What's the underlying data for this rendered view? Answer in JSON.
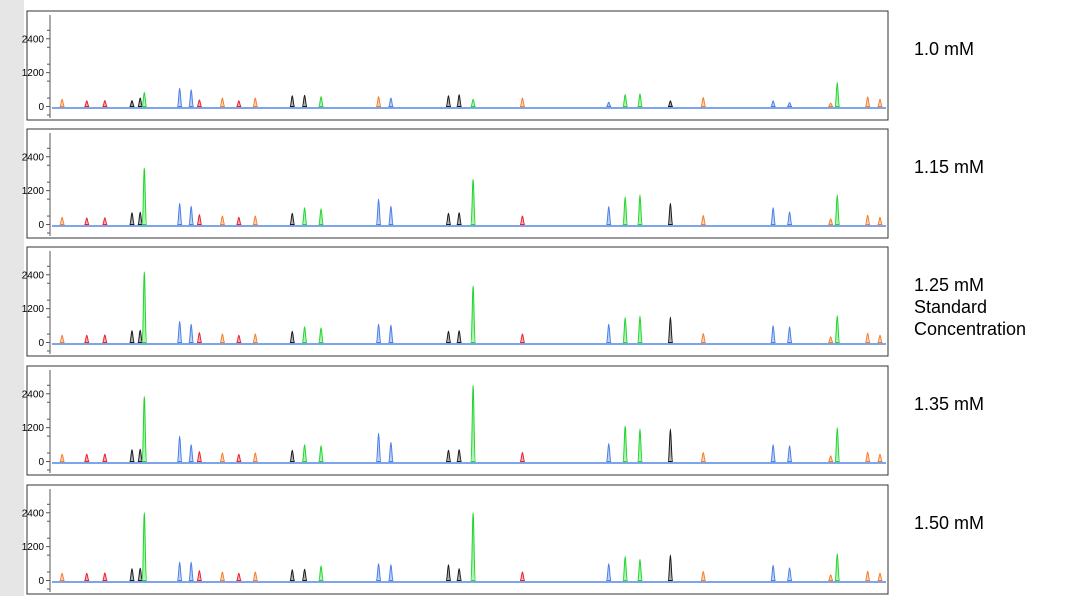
{
  "chart_data": {
    "type": "line",
    "y_ticks": [
      "2400",
      "1200",
      "0"
    ],
    "ylim": [
      -300,
      3100
    ],
    "x_range": [
      0,
      1
    ],
    "grid": false,
    "colors": {
      "blue": "#4a7fe6",
      "green": "#1fd62c",
      "black": "#1a1a1a",
      "red": "#e8202a",
      "orange": "#f57d2a",
      "baseline": "#2f6fe0"
    },
    "panels": [
      {
        "label": [
          "1.0 mM"
        ],
        "peaks": [
          {
            "x": 0.005,
            "h": 260,
            "c": "orange"
          },
          {
            "x": 0.035,
            "h": 200,
            "c": "red"
          },
          {
            "x": 0.057,
            "h": 210,
            "c": "red"
          },
          {
            "x": 0.09,
            "h": 210,
            "c": "black"
          },
          {
            "x": 0.1,
            "h": 300,
            "c": "black"
          },
          {
            "x": 0.105,
            "h": 500,
            "c": "green"
          },
          {
            "x": 0.148,
            "h": 650,
            "c": "blue"
          },
          {
            "x": 0.162,
            "h": 600,
            "c": "blue"
          },
          {
            "x": 0.172,
            "h": 230,
            "c": "red"
          },
          {
            "x": 0.2,
            "h": 300,
            "c": "orange"
          },
          {
            "x": 0.22,
            "h": 200,
            "c": "red"
          },
          {
            "x": 0.24,
            "h": 300,
            "c": "orange"
          },
          {
            "x": 0.285,
            "h": 380,
            "c": "black"
          },
          {
            "x": 0.3,
            "h": 400,
            "c": "black"
          },
          {
            "x": 0.32,
            "h": 350,
            "c": "green"
          },
          {
            "x": 0.39,
            "h": 350,
            "c": "orange"
          },
          {
            "x": 0.405,
            "h": 300,
            "c": "blue"
          },
          {
            "x": 0.475,
            "h": 380,
            "c": "black"
          },
          {
            "x": 0.488,
            "h": 420,
            "c": "black"
          },
          {
            "x": 0.505,
            "h": 260,
            "c": "green"
          },
          {
            "x": 0.565,
            "h": 300,
            "c": "orange"
          },
          {
            "x": 0.67,
            "h": 150,
            "c": "blue"
          },
          {
            "x": 0.69,
            "h": 420,
            "c": "green"
          },
          {
            "x": 0.708,
            "h": 450,
            "c": "green"
          },
          {
            "x": 0.745,
            "h": 200,
            "c": "black"
          },
          {
            "x": 0.785,
            "h": 320,
            "c": "orange"
          },
          {
            "x": 0.87,
            "h": 200,
            "c": "blue"
          },
          {
            "x": 0.89,
            "h": 140,
            "c": "blue"
          },
          {
            "x": 0.94,
            "h": 120,
            "c": "orange"
          },
          {
            "x": 0.948,
            "h": 850,
            "c": "green"
          },
          {
            "x": 0.985,
            "h": 340,
            "c": "orange"
          },
          {
            "x": 1.0,
            "h": 260,
            "c": "orange"
          }
        ]
      },
      {
        "label": [
          "1.15 mM"
        ],
        "peaks": [
          {
            "x": 0.005,
            "h": 260,
            "c": "orange"
          },
          {
            "x": 0.035,
            "h": 230,
            "c": "red"
          },
          {
            "x": 0.057,
            "h": 240,
            "c": "red"
          },
          {
            "x": 0.09,
            "h": 420,
            "c": "black"
          },
          {
            "x": 0.1,
            "h": 440,
            "c": "black"
          },
          {
            "x": 0.105,
            "h": 2000,
            "c": "green"
          },
          {
            "x": 0.148,
            "h": 750,
            "c": "blue"
          },
          {
            "x": 0.162,
            "h": 650,
            "c": "blue"
          },
          {
            "x": 0.172,
            "h": 350,
            "c": "red"
          },
          {
            "x": 0.2,
            "h": 300,
            "c": "orange"
          },
          {
            "x": 0.22,
            "h": 260,
            "c": "red"
          },
          {
            "x": 0.24,
            "h": 300,
            "c": "orange"
          },
          {
            "x": 0.285,
            "h": 400,
            "c": "black"
          },
          {
            "x": 0.3,
            "h": 600,
            "c": "green"
          },
          {
            "x": 0.32,
            "h": 560,
            "c": "green"
          },
          {
            "x": 0.39,
            "h": 900,
            "c": "blue"
          },
          {
            "x": 0.405,
            "h": 650,
            "c": "blue"
          },
          {
            "x": 0.475,
            "h": 400,
            "c": "black"
          },
          {
            "x": 0.488,
            "h": 420,
            "c": "black"
          },
          {
            "x": 0.505,
            "h": 1600,
            "c": "green"
          },
          {
            "x": 0.565,
            "h": 300,
            "c": "red"
          },
          {
            "x": 0.67,
            "h": 640,
            "c": "blue"
          },
          {
            "x": 0.69,
            "h": 980,
            "c": "green"
          },
          {
            "x": 0.708,
            "h": 1050,
            "c": "green"
          },
          {
            "x": 0.745,
            "h": 750,
            "c": "black"
          },
          {
            "x": 0.785,
            "h": 320,
            "c": "orange"
          },
          {
            "x": 0.87,
            "h": 600,
            "c": "blue"
          },
          {
            "x": 0.89,
            "h": 450,
            "c": "blue"
          },
          {
            "x": 0.94,
            "h": 200,
            "c": "orange"
          },
          {
            "x": 0.948,
            "h": 1050,
            "c": "green"
          },
          {
            "x": 0.985,
            "h": 330,
            "c": "orange"
          },
          {
            "x": 1.0,
            "h": 260,
            "c": "orange"
          }
        ]
      },
      {
        "label": [
          "1.25 mM",
          "Standard",
          "Concentration"
        ],
        "peaks": [
          {
            "x": 0.005,
            "h": 260,
            "c": "orange"
          },
          {
            "x": 0.035,
            "h": 260,
            "c": "red"
          },
          {
            "x": 0.057,
            "h": 270,
            "c": "red"
          },
          {
            "x": 0.09,
            "h": 420,
            "c": "black"
          },
          {
            "x": 0.1,
            "h": 440,
            "c": "black"
          },
          {
            "x": 0.105,
            "h": 2500,
            "c": "green"
          },
          {
            "x": 0.148,
            "h": 750,
            "c": "blue"
          },
          {
            "x": 0.162,
            "h": 650,
            "c": "blue"
          },
          {
            "x": 0.172,
            "h": 350,
            "c": "red"
          },
          {
            "x": 0.2,
            "h": 300,
            "c": "orange"
          },
          {
            "x": 0.22,
            "h": 260,
            "c": "red"
          },
          {
            "x": 0.24,
            "h": 300,
            "c": "orange"
          },
          {
            "x": 0.285,
            "h": 400,
            "c": "black"
          },
          {
            "x": 0.3,
            "h": 560,
            "c": "green"
          },
          {
            "x": 0.32,
            "h": 520,
            "c": "green"
          },
          {
            "x": 0.39,
            "h": 650,
            "c": "blue"
          },
          {
            "x": 0.405,
            "h": 620,
            "c": "blue"
          },
          {
            "x": 0.475,
            "h": 400,
            "c": "black"
          },
          {
            "x": 0.488,
            "h": 420,
            "c": "black"
          },
          {
            "x": 0.505,
            "h": 2000,
            "c": "green"
          },
          {
            "x": 0.565,
            "h": 300,
            "c": "red"
          },
          {
            "x": 0.67,
            "h": 650,
            "c": "blue"
          },
          {
            "x": 0.69,
            "h": 880,
            "c": "green"
          },
          {
            "x": 0.708,
            "h": 930,
            "c": "green"
          },
          {
            "x": 0.745,
            "h": 900,
            "c": "black"
          },
          {
            "x": 0.785,
            "h": 320,
            "c": "orange"
          },
          {
            "x": 0.87,
            "h": 600,
            "c": "blue"
          },
          {
            "x": 0.89,
            "h": 560,
            "c": "blue"
          },
          {
            "x": 0.94,
            "h": 200,
            "c": "orange"
          },
          {
            "x": 0.948,
            "h": 950,
            "c": "green"
          },
          {
            "x": 0.985,
            "h": 330,
            "c": "orange"
          },
          {
            "x": 1.0,
            "h": 260,
            "c": "orange"
          }
        ]
      },
      {
        "label": [
          "1.35 mM"
        ],
        "peaks": [
          {
            "x": 0.005,
            "h": 260,
            "c": "orange"
          },
          {
            "x": 0.035,
            "h": 260,
            "c": "red"
          },
          {
            "x": 0.057,
            "h": 270,
            "c": "red"
          },
          {
            "x": 0.09,
            "h": 420,
            "c": "black"
          },
          {
            "x": 0.1,
            "h": 440,
            "c": "black"
          },
          {
            "x": 0.105,
            "h": 2300,
            "c": "green"
          },
          {
            "x": 0.148,
            "h": 900,
            "c": "blue"
          },
          {
            "x": 0.162,
            "h": 600,
            "c": "blue"
          },
          {
            "x": 0.172,
            "h": 350,
            "c": "red"
          },
          {
            "x": 0.2,
            "h": 300,
            "c": "orange"
          },
          {
            "x": 0.22,
            "h": 260,
            "c": "red"
          },
          {
            "x": 0.24,
            "h": 300,
            "c": "orange"
          },
          {
            "x": 0.285,
            "h": 400,
            "c": "black"
          },
          {
            "x": 0.3,
            "h": 600,
            "c": "green"
          },
          {
            "x": 0.32,
            "h": 560,
            "c": "green"
          },
          {
            "x": 0.39,
            "h": 1000,
            "c": "blue"
          },
          {
            "x": 0.405,
            "h": 680,
            "c": "blue"
          },
          {
            "x": 0.475,
            "h": 400,
            "c": "black"
          },
          {
            "x": 0.488,
            "h": 420,
            "c": "black"
          },
          {
            "x": 0.505,
            "h": 2700,
            "c": "green"
          },
          {
            "x": 0.565,
            "h": 320,
            "c": "red"
          },
          {
            "x": 0.67,
            "h": 640,
            "c": "blue"
          },
          {
            "x": 0.69,
            "h": 1250,
            "c": "green"
          },
          {
            "x": 0.708,
            "h": 1150,
            "c": "green"
          },
          {
            "x": 0.745,
            "h": 1150,
            "c": "black"
          },
          {
            "x": 0.785,
            "h": 320,
            "c": "orange"
          },
          {
            "x": 0.87,
            "h": 600,
            "c": "blue"
          },
          {
            "x": 0.89,
            "h": 560,
            "c": "blue"
          },
          {
            "x": 0.94,
            "h": 200,
            "c": "orange"
          },
          {
            "x": 0.948,
            "h": 1200,
            "c": "green"
          },
          {
            "x": 0.985,
            "h": 330,
            "c": "orange"
          },
          {
            "x": 1.0,
            "h": 260,
            "c": "orange"
          }
        ]
      },
      {
        "label": [
          "1.50 mM"
        ],
        "peaks": [
          {
            "x": 0.005,
            "h": 260,
            "c": "orange"
          },
          {
            "x": 0.035,
            "h": 260,
            "c": "red"
          },
          {
            "x": 0.057,
            "h": 270,
            "c": "red"
          },
          {
            "x": 0.09,
            "h": 420,
            "c": "black"
          },
          {
            "x": 0.1,
            "h": 440,
            "c": "black"
          },
          {
            "x": 0.105,
            "h": 2400,
            "c": "green"
          },
          {
            "x": 0.148,
            "h": 650,
            "c": "blue"
          },
          {
            "x": 0.162,
            "h": 650,
            "c": "blue"
          },
          {
            "x": 0.172,
            "h": 350,
            "c": "red"
          },
          {
            "x": 0.2,
            "h": 300,
            "c": "orange"
          },
          {
            "x": 0.22,
            "h": 260,
            "c": "red"
          },
          {
            "x": 0.24,
            "h": 300,
            "c": "orange"
          },
          {
            "x": 0.285,
            "h": 380,
            "c": "black"
          },
          {
            "x": 0.3,
            "h": 400,
            "c": "black"
          },
          {
            "x": 0.32,
            "h": 520,
            "c": "green"
          },
          {
            "x": 0.39,
            "h": 600,
            "c": "blue"
          },
          {
            "x": 0.405,
            "h": 560,
            "c": "blue"
          },
          {
            "x": 0.475,
            "h": 560,
            "c": "black"
          },
          {
            "x": 0.488,
            "h": 420,
            "c": "black"
          },
          {
            "x": 0.505,
            "h": 2400,
            "c": "green"
          },
          {
            "x": 0.565,
            "h": 300,
            "c": "red"
          },
          {
            "x": 0.67,
            "h": 600,
            "c": "blue"
          },
          {
            "x": 0.69,
            "h": 850,
            "c": "green"
          },
          {
            "x": 0.708,
            "h": 750,
            "c": "green"
          },
          {
            "x": 0.745,
            "h": 900,
            "c": "black"
          },
          {
            "x": 0.785,
            "h": 320,
            "c": "orange"
          },
          {
            "x": 0.87,
            "h": 540,
            "c": "blue"
          },
          {
            "x": 0.89,
            "h": 450,
            "c": "blue"
          },
          {
            "x": 0.94,
            "h": 200,
            "c": "orange"
          },
          {
            "x": 0.948,
            "h": 950,
            "c": "green"
          },
          {
            "x": 0.985,
            "h": 330,
            "c": "orange"
          },
          {
            "x": 1.0,
            "h": 260,
            "c": "orange"
          }
        ]
      }
    ]
  }
}
